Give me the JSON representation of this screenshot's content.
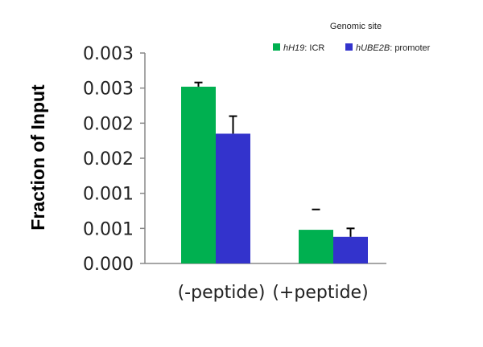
{
  "chart_data": {
    "type": "bar",
    "ylabel": "Fraction of  Input",
    "yticks": [
      "0.000",
      "0.001",
      "0.001",
      "0.002",
      "0.002",
      "0.003",
      "0.003"
    ],
    "ylim": [
      0,
      0.003
    ],
    "categories": [
      "(-peptide)",
      "(+peptide)"
    ],
    "legend_title": "Genomic site",
    "legend_position": "top-right",
    "series": [
      {
        "name_italic": "hH19",
        "name_rest": ": ICR",
        "color": "#00b050",
        "values": [
          0.00252,
          0.00048
        ],
        "errors": [
          6e-05,
          null
        ]
      },
      {
        "name_italic": "hUBE2B",
        "name_rest": ": promoter",
        "color": "#3333cc",
        "values": [
          0.00185,
          0.00038
        ],
        "errors": [
          0.00025,
          0.00012
        ]
      }
    ],
    "error_cap_only_plus": [
      0.00077
    ]
  }
}
